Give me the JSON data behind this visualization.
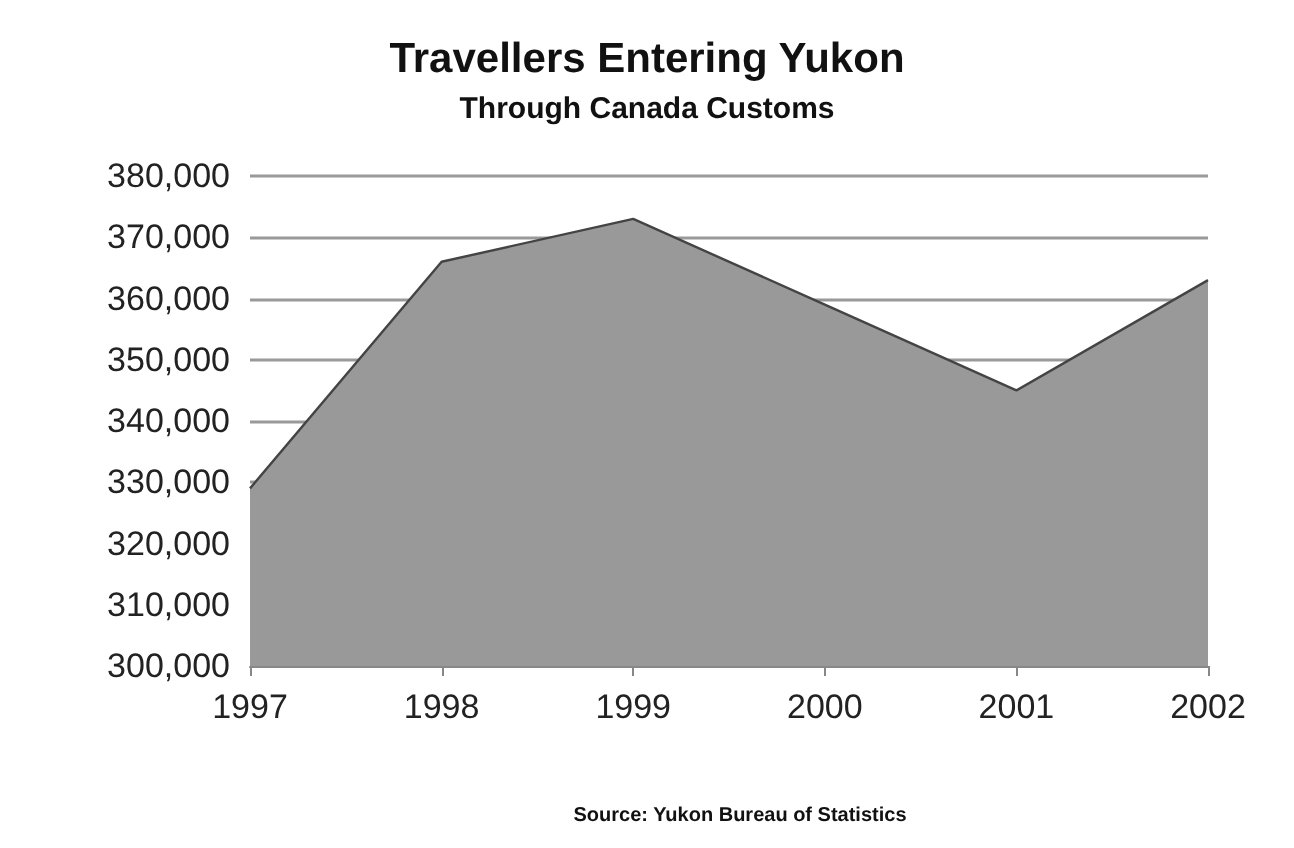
{
  "chart_data": {
    "type": "area",
    "title": "Travellers Entering Yukon",
    "subtitle": "Through Canada Customs",
    "annotations": [
      "Source: Yukon Bureau of Statistics"
    ],
    "categories": [
      "1997",
      "1998",
      "1999",
      "2000",
      "2001",
      "2002"
    ],
    "series": [
      {
        "color": "#999999",
        "values": [
          329000,
          366000,
          373000,
          359000,
          345000,
          363000
        ]
      }
    ],
    "ylim": [
      300000,
      380000
    ],
    "yticks": [
      {
        "value": 300000,
        "label": "300,000"
      },
      {
        "value": 310000,
        "label": "310,000"
      },
      {
        "value": 320000,
        "label": "320,000"
      },
      {
        "value": 330000,
        "label": "330,000"
      },
      {
        "value": 340000,
        "label": "340,000"
      },
      {
        "value": 350000,
        "label": "350,000"
      },
      {
        "value": 360000,
        "label": "360,000"
      },
      {
        "value": 370000,
        "label": "370,000"
      },
      {
        "value": 380000,
        "label": "380,000"
      }
    ],
    "grid": "y"
  }
}
